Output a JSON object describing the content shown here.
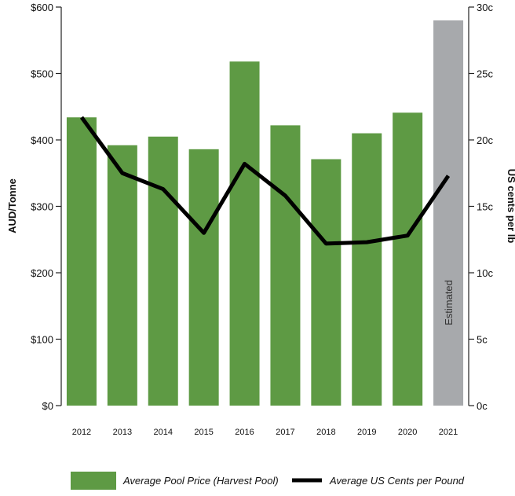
{
  "chart_data": {
    "type": "bar",
    "categories": [
      "2012",
      "2013",
      "2014",
      "2015",
      "2016",
      "2017",
      "2018",
      "2019",
      "2020",
      "2021"
    ],
    "series": [
      {
        "name": "Average Pool Price (Harvest Pool)",
        "type": "bar",
        "axis": "left",
        "values": [
          434,
          392,
          405,
          386,
          518,
          422,
          371,
          410,
          441,
          580
        ],
        "colors": [
          "#5e9a44",
          "#5e9a44",
          "#5e9a44",
          "#5e9a44",
          "#5e9a44",
          "#5e9a44",
          "#5e9a44",
          "#5e9a44",
          "#5e9a44",
          "#a7a9ac"
        ]
      },
      {
        "name": "Average US Cents per Pound",
        "type": "line",
        "axis": "right",
        "values": [
          21.7,
          17.5,
          16.3,
          13.0,
          18.2,
          15.8,
          12.2,
          12.3,
          12.8,
          17.3
        ],
        "color": "#000000"
      }
    ],
    "y_left": {
      "label": "AUD/Tonne",
      "lim": [
        0,
        600
      ],
      "ticks": [
        0,
        100,
        200,
        300,
        400,
        500,
        600
      ],
      "tick_labels": [
        "$0",
        "$100",
        "$200",
        "$300",
        "$400",
        "$500",
        "$600"
      ]
    },
    "y_right": {
      "label": "US cents per lb",
      "lim": [
        0,
        30
      ],
      "ticks": [
        0,
        5,
        10,
        15,
        20,
        25,
        30
      ],
      "tick_labels": [
        "0c",
        "5c",
        "10c",
        "15c",
        "20c",
        "25c",
        "30c"
      ]
    },
    "annotations": [
      {
        "category": "2021",
        "text": "Estimated"
      }
    ],
    "grid": false,
    "legend": "bottom"
  }
}
